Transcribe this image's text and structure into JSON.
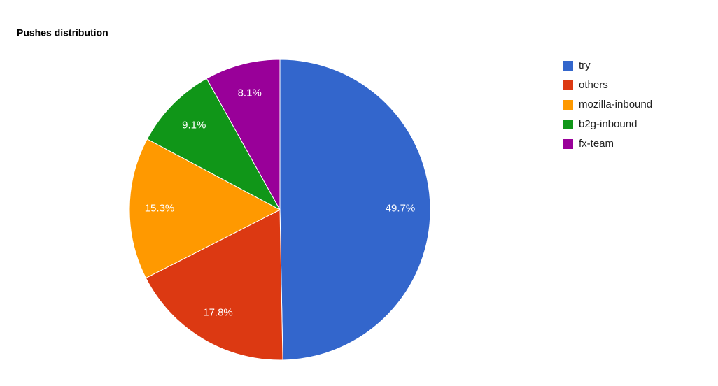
{
  "chart_data": {
    "type": "pie",
    "title": "Pushes distribution",
    "categories": [
      "try",
      "others",
      "mozilla-inbound",
      "b2g-inbound",
      "fx-team"
    ],
    "values": [
      49.7,
      17.8,
      15.3,
      9.1,
      8.1
    ],
    "value_labels": [
      "49.7%",
      "17.8%",
      "15.3%",
      "9.1%",
      "8.1%"
    ],
    "colors": [
      "#3366cc",
      "#dc3912",
      "#ff9900",
      "#109618",
      "#990099"
    ],
    "legend": "right"
  }
}
